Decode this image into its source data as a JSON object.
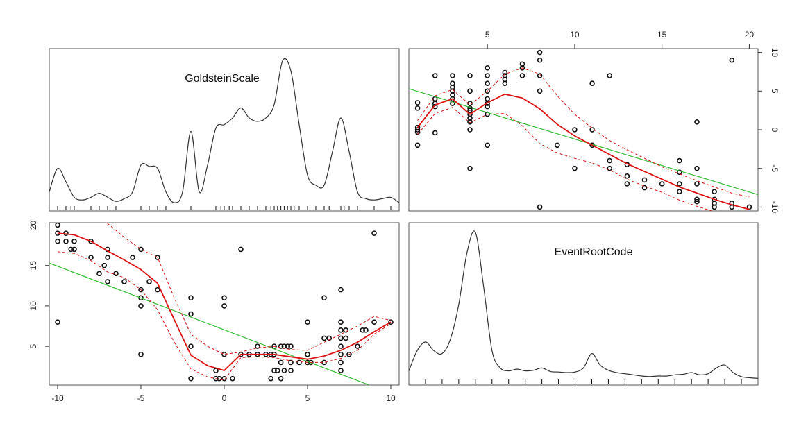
{
  "chart_data": [
    {
      "type": "line",
      "subtype": "density",
      "title": "GoldsteinScale",
      "variable": "GoldsteinScale",
      "x": [
        -10.5,
        -10,
        -9.5,
        -9,
        -8.5,
        -8,
        -7.5,
        -7,
        -6.5,
        -6,
        -5.5,
        -5,
        -4.5,
        -4,
        -3.5,
        -3,
        -2.5,
        -2,
        -1.5,
        -1,
        -0.5,
        0,
        0.5,
        1,
        1.5,
        2,
        2.5,
        3,
        3.5,
        4,
        4.5,
        5,
        5.5,
        6,
        6.5,
        7,
        7.5,
        8,
        8.5,
        9,
        9.5,
        10,
        10.5
      ],
      "density": [
        0.02,
        0.055,
        0.035,
        0.012,
        0.008,
        0.012,
        0.018,
        0.012,
        0.006,
        0.01,
        0.02,
        0.06,
        0.058,
        0.055,
        0.02,
        0.004,
        0.02,
        0.11,
        0.02,
        0.06,
        0.115,
        0.12,
        0.13,
        0.145,
        0.13,
        0.125,
        0.13,
        0.15,
        0.215,
        0.2,
        0.12,
        0.045,
        0.03,
        0.03,
        0.08,
        0.13,
        0.08,
        0.02,
        0.01,
        0.008,
        0.01,
        0.012,
        0.004
      ],
      "rug": [
        -10,
        -9.5,
        -9.2,
        -9,
        -8,
        -7.5,
        -7,
        -6.5,
        -5,
        -4.5,
        -4,
        -3.5,
        -2,
        -0.5,
        -0.2,
        0,
        0.3,
        0.5,
        1,
        1.5,
        2,
        2.5,
        2.8,
        3,
        3.2,
        3.4,
        3.6,
        3.8,
        4,
        4.2,
        4.5,
        5,
        5.5,
        6,
        6.3,
        7,
        7.2,
        7.5,
        8,
        9,
        10
      ]
    },
    {
      "type": "scatter",
      "x_variable": "EventRootCode",
      "y_variable": "GoldsteinScale",
      "top_axis_ticks": [
        5,
        10,
        15,
        20
      ],
      "right_axis_ticks": [
        -10,
        -5,
        0,
        5,
        10
      ],
      "xlim": [
        0.5,
        20.5
      ],
      "ylim": [
        -10.5,
        10.5
      ],
      "points": [
        [
          1,
          -2
        ],
        [
          1,
          0
        ],
        [
          1,
          0.3
        ],
        [
          1,
          -0.3
        ],
        [
          1,
          3.5
        ],
        [
          1,
          2.8
        ],
        [
          2,
          3
        ],
        [
          2,
          3.4
        ],
        [
          2,
          4
        ],
        [
          2,
          7
        ],
        [
          2,
          -0.4
        ],
        [
          3,
          3.4
        ],
        [
          3,
          4
        ],
        [
          3,
          4.5
        ],
        [
          3,
          5
        ],
        [
          3,
          5.5
        ],
        [
          3,
          6
        ],
        [
          3,
          7
        ],
        [
          4,
          -5
        ],
        [
          4,
          0
        ],
        [
          4,
          1
        ],
        [
          4,
          1.5
        ],
        [
          4,
          2
        ],
        [
          4,
          2.5
        ],
        [
          4,
          2.8
        ],
        [
          4,
          3.4
        ],
        [
          4,
          5
        ],
        [
          4,
          7
        ],
        [
          5,
          -2
        ],
        [
          5,
          2
        ],
        [
          5,
          3
        ],
        [
          5,
          3.4
        ],
        [
          5,
          4
        ],
        [
          5,
          5
        ],
        [
          5,
          6
        ],
        [
          5,
          7
        ],
        [
          5,
          8
        ],
        [
          6,
          6
        ],
        [
          6,
          6.5
        ],
        [
          6,
          7
        ],
        [
          6,
          7.4
        ],
        [
          7,
          7
        ],
        [
          7,
          8
        ],
        [
          7,
          8.5
        ],
        [
          8,
          -10
        ],
        [
          8,
          5
        ],
        [
          8,
          7
        ],
        [
          8,
          9
        ],
        [
          8,
          10
        ],
        [
          9,
          -2
        ],
        [
          10,
          -5
        ],
        [
          10,
          0
        ],
        [
          11,
          -2
        ],
        [
          11,
          0
        ],
        [
          11,
          6
        ],
        [
          12,
          -5
        ],
        [
          12,
          -4
        ],
        [
          12,
          7
        ],
        [
          13,
          -7
        ],
        [
          13,
          -6
        ],
        [
          13,
          -4.5
        ],
        [
          14,
          -6.5
        ],
        [
          14,
          -7.5
        ],
        [
          15,
          -7
        ],
        [
          16,
          -8
        ],
        [
          16,
          -7
        ],
        [
          16,
          -5.5
        ],
        [
          16,
          -4
        ],
        [
          17,
          -9
        ],
        [
          17,
          -9.3
        ],
        [
          17,
          -7
        ],
        [
          17,
          -5
        ],
        [
          17,
          1
        ],
        [
          18,
          -8
        ],
        [
          18,
          -9
        ],
        [
          18,
          -9.5
        ],
        [
          18,
          -10
        ],
        [
          19,
          -9.5
        ],
        [
          19,
          -10
        ],
        [
          19,
          9
        ],
        [
          20,
          -10
        ]
      ],
      "ols_line": {
        "x": [
          0.5,
          20.5
        ],
        "y": [
          5.3,
          -8.4
        ]
      },
      "smooth_line": {
        "x": [
          1,
          2,
          3,
          4,
          5,
          6,
          7,
          8,
          9,
          10,
          11,
          12,
          13,
          14,
          15,
          16,
          17,
          18,
          19,
          20
        ],
        "y": [
          0.3,
          3.2,
          4,
          2,
          3.5,
          4.6,
          4.1,
          2.7,
          0.7,
          -0.8,
          -2,
          -3.2,
          -4.4,
          -5.4,
          -6.4,
          -7.4,
          -8.2,
          -9,
          -9.7,
          -10.3
        ]
      },
      "band_upper": {
        "x": [
          1,
          2,
          3,
          4,
          5,
          6,
          7,
          8,
          9,
          10,
          11,
          12,
          13,
          14,
          15,
          16,
          17,
          18,
          19,
          20
        ],
        "y": [
          1.2,
          4.4,
          5.2,
          3.2,
          5,
          7.2,
          8,
          7.2,
          4.4,
          2,
          0.2,
          -1.4,
          -2.6,
          -3.7,
          -4.8,
          -5.7,
          -6.6,
          -7.4,
          -8.2,
          -8.7
        ]
      },
      "band_lower": {
        "x": [
          1,
          2,
          3,
          4,
          5,
          6,
          7,
          8,
          9,
          10,
          11,
          12,
          13,
          14,
          15,
          16,
          17,
          18,
          19,
          20
        ],
        "y": [
          -0.6,
          2.1,
          2.9,
          0.9,
          2,
          2.1,
          0.5,
          -1.8,
          -3,
          -3.7,
          -4.3,
          -5.2,
          -6.4,
          -7.3,
          -8.1,
          -9.1,
          -9.9,
          -10.6,
          -11.2,
          -11.8
        ]
      }
    },
    {
      "type": "scatter",
      "x_variable": "GoldsteinScale",
      "y_variable": "EventRootCode",
      "bottom_axis_ticks": [
        -10,
        -5,
        0,
        5,
        10
      ],
      "left_axis_ticks": [
        5,
        10,
        15,
        20
      ],
      "xlim": [
        -10.5,
        10.5
      ],
      "ylim": [
        0.2,
        20.3
      ],
      "points": [
        [
          -10,
          20
        ],
        [
          -10,
          19
        ],
        [
          -10,
          18
        ],
        [
          -10,
          8
        ],
        [
          -9.5,
          19
        ],
        [
          -9.5,
          18
        ],
        [
          -9.2,
          17
        ],
        [
          -9,
          18
        ],
        [
          -9,
          17
        ],
        [
          -8,
          18
        ],
        [
          -8,
          16
        ],
        [
          -7.5,
          14
        ],
        [
          -7.2,
          15
        ],
        [
          -7,
          17
        ],
        [
          -7,
          16
        ],
        [
          -7,
          13
        ],
        [
          -6.5,
          14
        ],
        [
          -6,
          13
        ],
        [
          -5.5,
          16
        ],
        [
          -5,
          17
        ],
        [
          -5,
          12
        ],
        [
          -5,
          10
        ],
        [
          -5,
          11
        ],
        [
          -5,
          4
        ],
        [
          -4.5,
          13
        ],
        [
          -4,
          16
        ],
        [
          -4,
          12
        ],
        [
          -2,
          11
        ],
        [
          -2,
          9
        ],
        [
          -2,
          5
        ],
        [
          -2,
          1
        ],
        [
          -0.5,
          2
        ],
        [
          -0.5,
          1
        ],
        [
          -0.3,
          1
        ],
        [
          0,
          11
        ],
        [
          0,
          10
        ],
        [
          0,
          4
        ],
        [
          0,
          1
        ],
        [
          0.5,
          1
        ],
        [
          1,
          17
        ],
        [
          1,
          4
        ],
        [
          1.5,
          4
        ],
        [
          2,
          5
        ],
        [
          2,
          4
        ],
        [
          2.5,
          4
        ],
        [
          2.8,
          4
        ],
        [
          2.8,
          1
        ],
        [
          3,
          5
        ],
        [
          3,
          4
        ],
        [
          3,
          2
        ],
        [
          3.2,
          2
        ],
        [
          3.4,
          5
        ],
        [
          3.4,
          3
        ],
        [
          3.4,
          1
        ],
        [
          3.6,
          5
        ],
        [
          3.6,
          2
        ],
        [
          3.8,
          5
        ],
        [
          4,
          5
        ],
        [
          4,
          3
        ],
        [
          4,
          2
        ],
        [
          4.5,
          3
        ],
        [
          5,
          8
        ],
        [
          5,
          4
        ],
        [
          5,
          3
        ],
        [
          5.2,
          3
        ],
        [
          6,
          11
        ],
        [
          6,
          6
        ],
        [
          6,
          3
        ],
        [
          6.3,
          6
        ],
        [
          7,
          12
        ],
        [
          7,
          8
        ],
        [
          7,
          7
        ],
        [
          7,
          6
        ],
        [
          7,
          5
        ],
        [
          7,
          4
        ],
        [
          7,
          3
        ],
        [
          7,
          2
        ],
        [
          7.3,
          7
        ],
        [
          7.3,
          6
        ],
        [
          7.5,
          4
        ],
        [
          8,
          5
        ],
        [
          8.3,
          7
        ],
        [
          8.5,
          7
        ],
        [
          9,
          19
        ],
        [
          9,
          8
        ],
        [
          10,
          8
        ]
      ],
      "ols_line": {
        "x": [
          -10.5,
          8.7
        ],
        "y": [
          15.3,
          0.2
        ]
      },
      "smooth_line": {
        "x": [
          -10,
          -9,
          -8,
          -7,
          -6,
          -5,
          -4,
          -3,
          -2,
          -1,
          0,
          1,
          2,
          3,
          4,
          5,
          6,
          7,
          8,
          9,
          10
        ],
        "y": [
          19,
          18.8,
          18,
          16.8,
          15.7,
          14.5,
          12.8,
          8.3,
          3.9,
          2.6,
          2,
          4,
          4,
          4,
          3.7,
          3.4,
          3.8,
          4.5,
          5.5,
          6.8,
          8
        ]
      },
      "band_upper": {
        "x": [
          -8,
          -7,
          -6,
          -5,
          -4,
          -3,
          -2,
          -1,
          0,
          1,
          2,
          3,
          4,
          5,
          6,
          7,
          8,
          9,
          10
        ],
        "y": [
          21.5,
          20.2,
          18.5,
          17,
          16,
          11,
          6.5,
          5,
          4,
          4.3,
          4.8,
          5,
          4.6,
          4.5,
          5.5,
          6.5,
          7.5,
          8.7,
          8.2
        ]
      },
      "band_lower": {
        "x": [
          -10,
          -9,
          -8,
          -7,
          -6,
          -5,
          -4,
          -3,
          -2,
          -1,
          0,
          1,
          2,
          3,
          4,
          5,
          6,
          7,
          8,
          9,
          10
        ],
        "y": [
          16.7,
          16.5,
          15.6,
          14.2,
          13.5,
          12,
          9.5,
          5.5,
          2.2,
          1.2,
          0.8,
          3.6,
          3.7,
          3.6,
          3.2,
          3,
          3,
          3.5,
          4.5,
          6.5,
          7.8
        ]
      }
    },
    {
      "type": "line",
      "subtype": "density",
      "title": "EventRootCode",
      "variable": "EventRootCode",
      "x": [
        0,
        0.5,
        1,
        1.5,
        2,
        2.5,
        3,
        3.5,
        4,
        4.5,
        5,
        5.5,
        6,
        6.5,
        7,
        7.5,
        8,
        8.5,
        9,
        9.5,
        10,
        10.5,
        11,
        11.5,
        12,
        12.5,
        13,
        13.5,
        14,
        14.5,
        15,
        15.5,
        16,
        16.5,
        17,
        17.5,
        18,
        18.5,
        19,
        19.5,
        20,
        20.5,
        21
      ],
      "density": [
        0.015,
        0.05,
        0.065,
        0.05,
        0.045,
        0.07,
        0.13,
        0.22,
        0.255,
        0.16,
        0.05,
        0.02,
        0.015,
        0.018,
        0.015,
        0.016,
        0.02,
        0.014,
        0.013,
        0.012,
        0.013,
        0.02,
        0.045,
        0.025,
        0.016,
        0.012,
        0.01,
        0.008,
        0.006,
        0.005,
        0.006,
        0.006,
        0.008,
        0.009,
        0.012,
        0.008,
        0.01,
        0.02,
        0.025,
        0.012,
        0.005,
        0.003,
        0.002
      ],
      "rug": [
        1,
        2,
        3,
        4,
        5,
        6,
        7,
        8,
        9,
        10,
        11,
        12,
        13,
        14,
        15,
        16,
        17,
        18,
        19,
        20
      ]
    }
  ]
}
